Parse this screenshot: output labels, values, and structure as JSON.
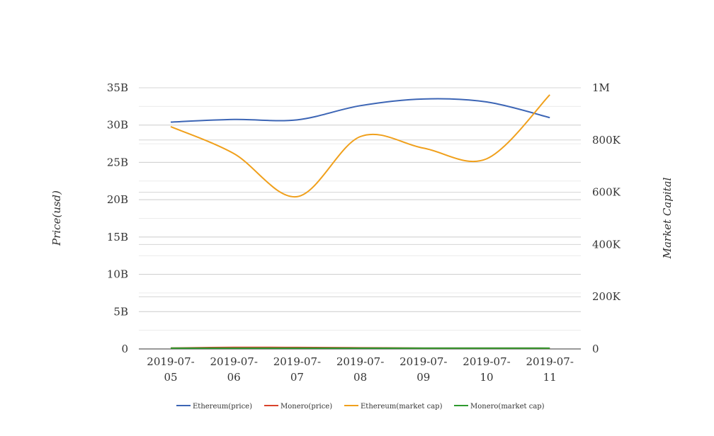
{
  "chart_data": {
    "type": "line",
    "categories": [
      "2019-07-05",
      "2019-07-06",
      "2019-07-07",
      "2019-07-08",
      "2019-07-09",
      "2019-07-10",
      "2019-07-11"
    ],
    "category_label_lines": [
      [
        "2019-07-",
        "05"
      ],
      [
        "2019-07-",
        "06"
      ],
      [
        "2019-07-",
        "07"
      ],
      [
        "2019-07-",
        "08"
      ],
      [
        "2019-07-",
        "09"
      ],
      [
        "2019-07-",
        "10"
      ],
      [
        "2019-07-",
        "11"
      ]
    ],
    "ylabel": "Price(usd)",
    "y2label": "Market Capital",
    "ylim": [
      0,
      35000000000
    ],
    "y2lim": [
      0,
      1000000
    ],
    "yticks": [
      0,
      5000000000,
      10000000000,
      15000000000,
      20000000000,
      25000000000,
      30000000000,
      35000000000
    ],
    "ytick_labels": [
      "0",
      "5B",
      "10B",
      "15B",
      "20B",
      "25B",
      "30B",
      "35B"
    ],
    "y2ticks": [
      0,
      200000,
      400000,
      600000,
      800000,
      1000000
    ],
    "y2tick_labels": [
      "0",
      "200K",
      "400K",
      "600K",
      "800K",
      "1M"
    ],
    "grid": true,
    "legend_position": "bottom",
    "series": [
      {
        "name": "Ethereum(price)",
        "axis": "left",
        "color": "#3c65b5",
        "values": [
          30400000000,
          30750000000,
          30700000000,
          32600000000,
          33500000000,
          33100000000,
          31000000000
        ]
      },
      {
        "name": "Monero(price)",
        "axis": "left",
        "color": "#d9432b",
        "values": [
          120000000,
          210000000,
          200000000,
          160000000,
          110000000,
          110000000,
          100000000
        ]
      },
      {
        "name": "Ethereum(market cap)",
        "axis": "right",
        "color": "#f0a01c",
        "values": [
          851000,
          748000,
          583000,
          813000,
          769000,
          728000,
          973000
        ]
      },
      {
        "name": "Monero(market cap)",
        "axis": "right",
        "color": "#2e9a2e",
        "values": [
          3000,
          3000,
          3000,
          3000,
          3000,
          3000,
          3000
        ]
      }
    ]
  }
}
